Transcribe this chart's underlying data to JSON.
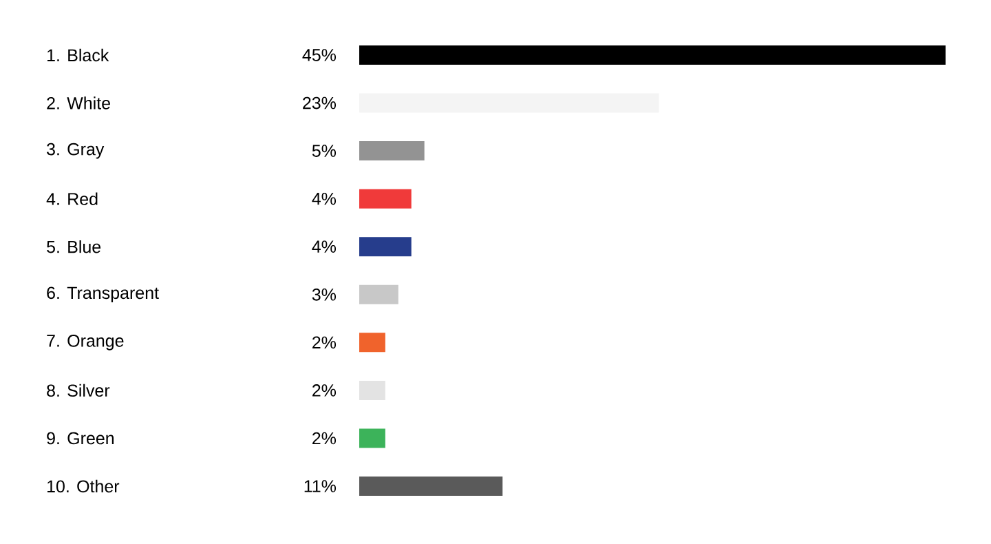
{
  "chart_data": {
    "type": "bar",
    "orientation": "horizontal",
    "tick_labels": "y",
    "categories": [
      "1. Black",
      "2. White",
      "3. Gray",
      "4. Red",
      "5. Blue",
      "6. Transparent",
      "7. Orange",
      "8. Silver",
      "9. Green",
      "10. Other"
    ],
    "values": [
      45,
      23,
      5,
      4,
      4,
      3,
      2,
      2,
      2,
      11
    ],
    "value_labels": [
      "45%",
      "23%",
      "5%",
      "4%",
      "4%",
      "3%",
      "2%",
      "2%",
      "2%",
      "11%"
    ],
    "colors": [
      "#000000",
      "#f4f4f4",
      "#939393",
      "#f03a3a",
      "#263d8c",
      "#c8c8c8",
      "#f0632c",
      "#e3e3e3",
      "#3cb35a",
      "#5a5a5a"
    ]
  }
}
